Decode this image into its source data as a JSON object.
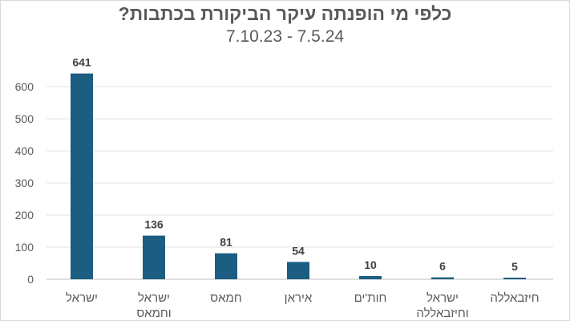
{
  "chart_data": {
    "type": "bar",
    "title": "כלפי מי הופנתה עיקר הביקורת בכתבות?",
    "subtitle": "7.10.23 - 7.5.24",
    "categories": [
      [
        "ישראל"
      ],
      [
        "ישראל",
        "וחמאס"
      ],
      [
        "חמאס"
      ],
      [
        "איראן"
      ],
      [
        "חות'ים"
      ],
      [
        "ישראל",
        "וחיזבאללה"
      ],
      [
        "חיזבאללה"
      ]
    ],
    "values": [
      641,
      136,
      81,
      54,
      10,
      6,
      5
    ],
    "ylim": [
      0,
      700
    ],
    "yticks": [
      0,
      100,
      200,
      300,
      400,
      500,
      600
    ],
    "grid": true,
    "bar_color": "#1b5e82",
    "xlabel": "",
    "ylabel": ""
  }
}
